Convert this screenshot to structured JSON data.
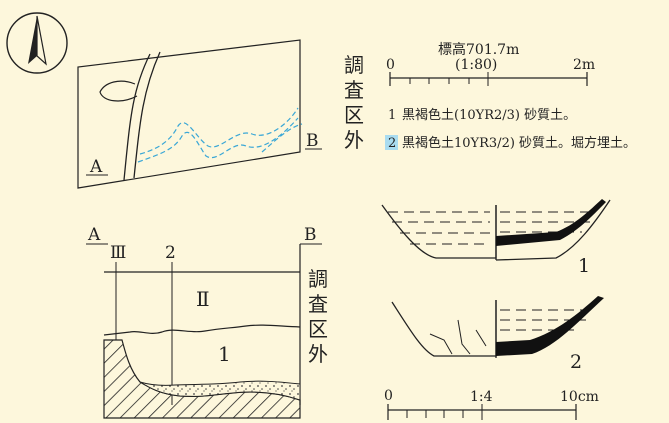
{
  "background_color": "#fdf7dc",
  "line_color": "#222222",
  "dashed_line_color": "#3aa7d6",
  "north_arrow": {
    "icon": "north-arrow-icon"
  },
  "plan": {
    "label_a": "A",
    "label_b": "B",
    "out_of_area_label": [
      "調",
      "査",
      "区",
      "外"
    ]
  },
  "scale_top": {
    "elevation": "標高701.7m",
    "ratio": "(1:80)",
    "start": "0",
    "end": "2m"
  },
  "legend": [
    {
      "number": "1",
      "text": "黒褐色土(10YR2/3) 砂質土。"
    },
    {
      "number": "2",
      "text": "黒褐色土10YR3/2) 砂質土。堀方埋土。"
    }
  ],
  "section": {
    "label_a": "A",
    "label_b": "B",
    "marker_3": "Ⅲ",
    "marker_2": "2",
    "layer_2": "Ⅱ",
    "layer_1": "1",
    "out_of_area_label": [
      "調",
      "査",
      "区",
      "外"
    ]
  },
  "artifacts": {
    "label_1": "1",
    "label_2": "2"
  },
  "scale_bottom": {
    "start": "0",
    "ratio": "1:4",
    "end": "10cm"
  }
}
